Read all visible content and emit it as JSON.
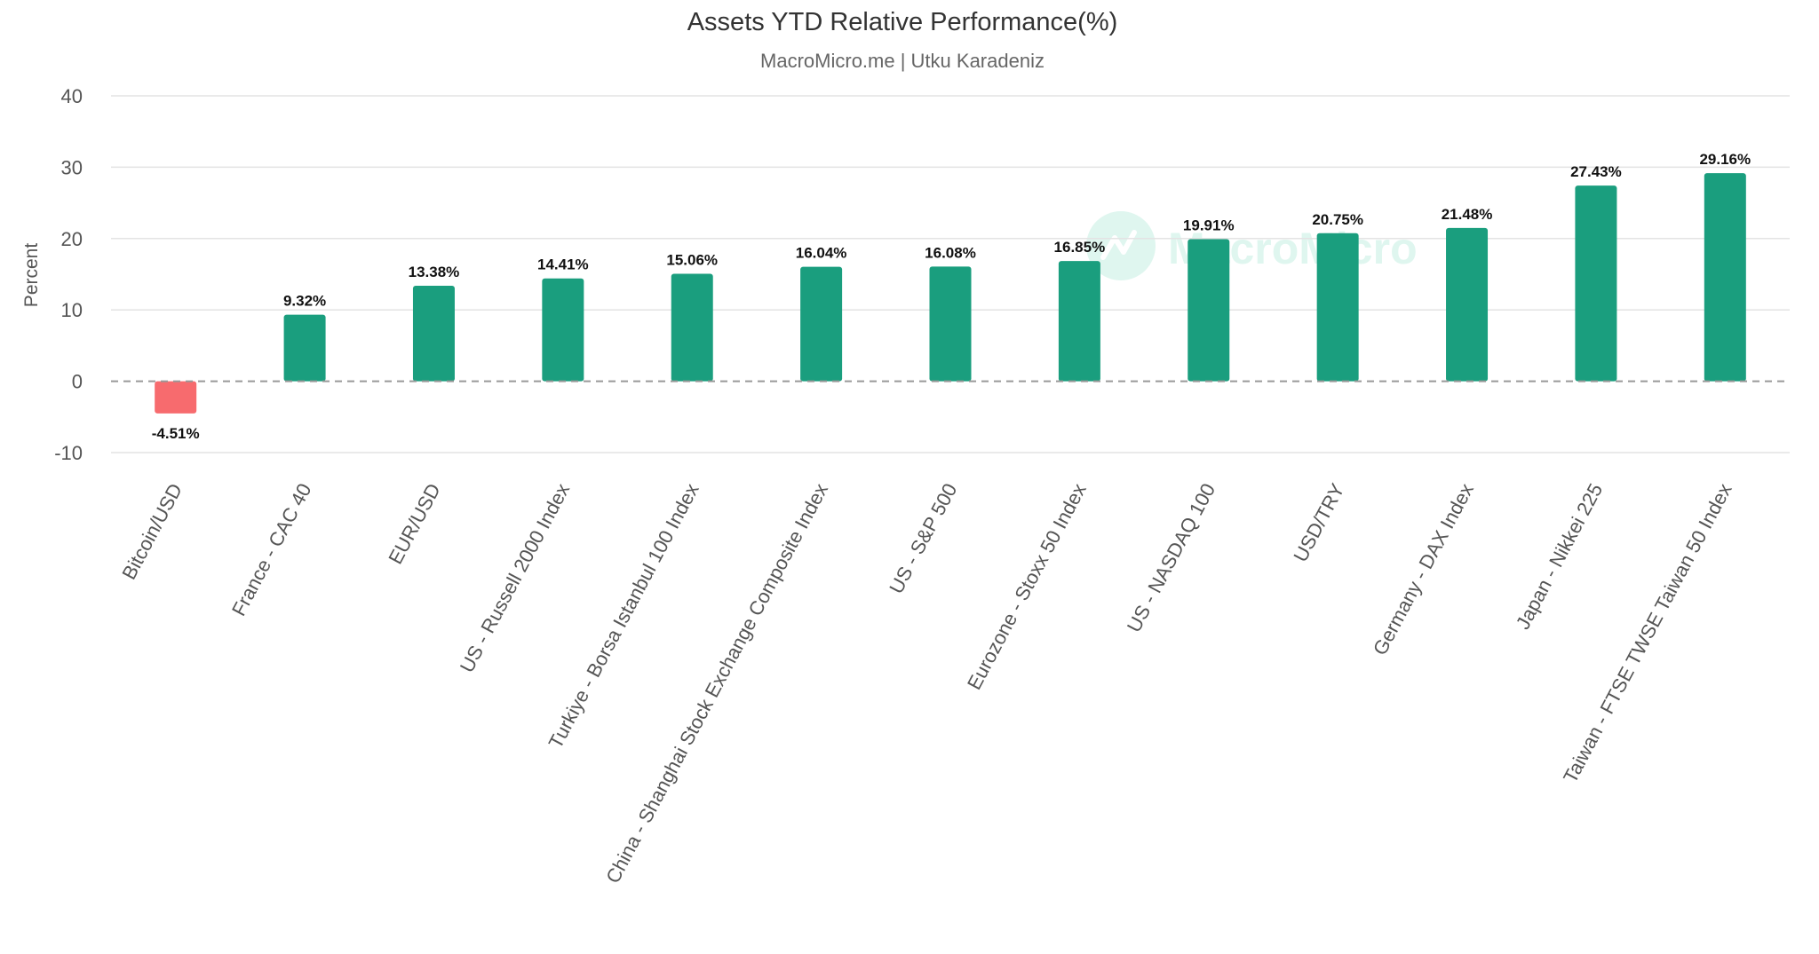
{
  "chart_data": {
    "type": "bar",
    "title": "Assets YTD Relative Performance(%)",
    "subtitle": "MacroMicro.me | Utku Karadeniz",
    "ylabel": "Percent",
    "xlabel": "",
    "ylim": [
      -10,
      40
    ],
    "yticks": [
      40,
      30,
      20,
      10,
      0,
      -10
    ],
    "grid": true,
    "zero_line": "dashed",
    "watermark": "MacroMicro",
    "colors": {
      "positive": "#1a9e7e",
      "negative": "#f76b6e",
      "zero_line": "#999999",
      "watermark": "#dff6ef"
    },
    "categories": [
      "Bitcoin/USD",
      "France - CAC 40",
      "EUR/USD",
      "US - Russell 2000 Index",
      "Turkiye - Borsa Istanbul 100 Index",
      "China - Shanghai Stock Exchange Composite Index",
      "US - S&P 500",
      "Eurozone - Stoxx 50 Index",
      "US - NASDAQ 100",
      "USD/TRY",
      "Germany - DAX Index",
      "Japan - Nikkei 225",
      "Taiwan - FTSE TWSE Taiwan 50 Index"
    ],
    "values": [
      -4.51,
      9.32,
      13.38,
      14.41,
      15.06,
      16.04,
      16.08,
      16.85,
      19.91,
      20.75,
      21.48,
      27.43,
      29.16
    ],
    "data_labels": [
      "-4.51%",
      "9.32%",
      "13.38%",
      "14.41%",
      "15.06%",
      "16.04%",
      "16.08%",
      "16.85%",
      "19.91%",
      "20.75%",
      "21.48%",
      "27.43%",
      "29.16%"
    ]
  }
}
